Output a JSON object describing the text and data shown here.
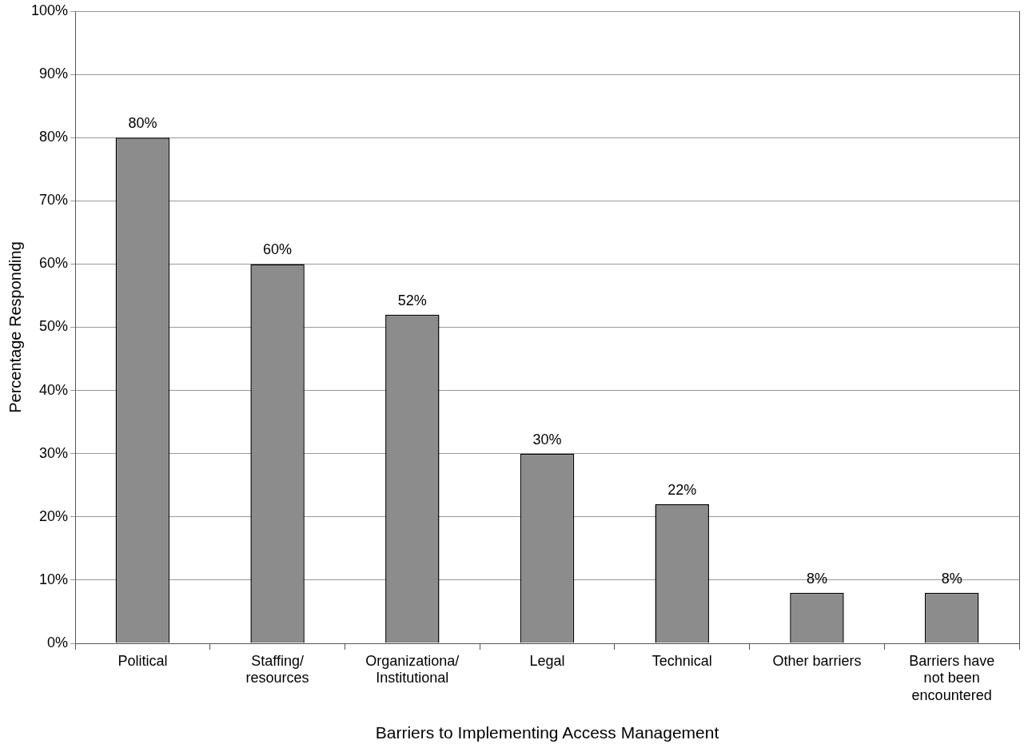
{
  "chart_data": {
    "type": "bar",
    "xlabel": "Barriers to Implementing Access Management",
    "ylabel": "Percentage Responding",
    "categories": [
      "Political",
      "Staffing/\nresources",
      "Organizationa/\nInstitutional",
      "Legal",
      "Technical",
      "Other barriers",
      "Barriers have\nnot been\nencountered"
    ],
    "values": [
      80,
      60,
      52,
      30,
      22,
      8,
      8
    ],
    "color": "#8c8c8c",
    "ylim": [
      0,
      100
    ],
    "yticks": [
      {
        "value": 0,
        "label": "0%"
      },
      {
        "value": 10,
        "label": "10%"
      },
      {
        "value": 20,
        "label": "20%"
      },
      {
        "value": 30,
        "label": "30%"
      },
      {
        "value": 40,
        "label": "40%"
      },
      {
        "value": 50,
        "label": "50%"
      },
      {
        "value": 60,
        "label": "60%"
      },
      {
        "value": 70,
        "label": "70%"
      },
      {
        "value": 80,
        "label": "80%"
      },
      {
        "value": 90,
        "label": "90%"
      },
      {
        "value": 100,
        "label": "100%"
      }
    ],
    "value_labels": [
      "80%",
      "60%",
      "52%",
      "30%",
      "22%",
      "8%",
      "8%"
    ],
    "grid": "y",
    "legend": false
  }
}
